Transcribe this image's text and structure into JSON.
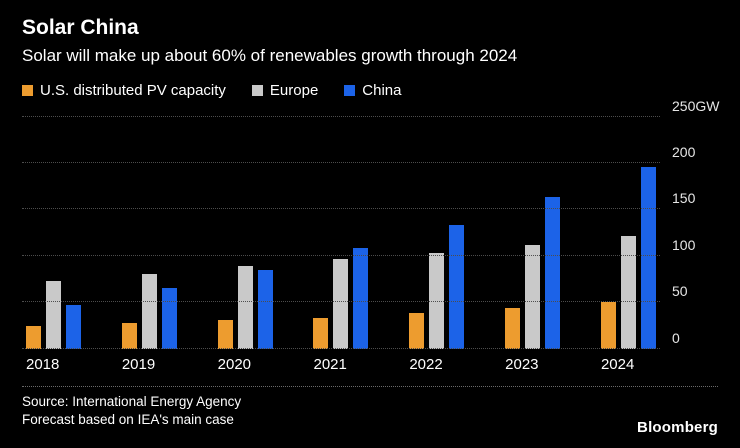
{
  "header": {
    "title": "Solar China",
    "subtitle": "Solar will make up about 60% of renewables growth through 2024"
  },
  "colors": {
    "background": "#000000",
    "us": "#ED9C2F",
    "europe": "#C9C9C9",
    "china": "#1C63E8",
    "gridline": "#4D4D4D"
  },
  "chart_data": {
    "type": "bar",
    "title": "Solar China",
    "subtitle": "Solar will make up about 60% of renewables growth through 2024",
    "unit": "GW",
    "categories": [
      "2018",
      "2019",
      "2020",
      "2021",
      "2022",
      "2023",
      "2024"
    ],
    "series": [
      {
        "name": "U.S. distributed PV capacity",
        "color": "#ED9C2F",
        "values": [
          24,
          27,
          31,
          33,
          38,
          44,
          50
        ]
      },
      {
        "name": "Europe",
        "color": "#C9C9C9",
        "values": [
          73,
          80,
          89,
          97,
          103,
          112,
          121
        ]
      },
      {
        "name": "China",
        "color": "#1C63E8",
        "values": [
          47,
          65,
          85,
          108,
          133,
          163,
          196
        ]
      }
    ],
    "ylim": [
      0,
      250
    ],
    "yticks": [
      {
        "value": 0,
        "label": "0"
      },
      {
        "value": 50,
        "label": "50"
      },
      {
        "value": 100,
        "label": "100"
      },
      {
        "value": 150,
        "label": "150"
      },
      {
        "value": 200,
        "label": "200"
      },
      {
        "value": 250,
        "label": "250GW"
      }
    ],
    "grid": "dotted-horizontal",
    "legend_position": "top"
  },
  "footer": {
    "source_line1": "Source: International Energy Agency",
    "source_line2": "Forecast based on IEA's main case",
    "brand": "Bloomberg"
  }
}
